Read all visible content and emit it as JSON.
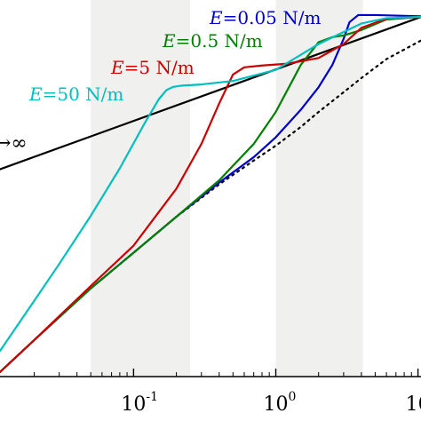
{
  "chart_data": {
    "type": "line",
    "x_scale": "log",
    "y_scale": "log",
    "xlim": [
      0.0115,
      10.5
    ],
    "ylim": [
      0.0095,
      1.48
    ],
    "grid": false,
    "legend": "none",
    "x_tick_values": [
      0.1,
      1,
      10
    ],
    "x_tick_labels": [
      {
        "base": "10",
        "exp": "-1"
      },
      {
        "base": "10",
        "exp": "0"
      },
      {
        "base": "10",
        "exp": ""
      }
    ],
    "shaded_bands": [
      {
        "x0": 0.05,
        "x1": 0.25,
        "color": "#f0f0ee"
      },
      {
        "x0": 1.0,
        "x1": 4.1,
        "color": "#f0f0ee"
      }
    ],
    "series": [
      {
        "label_prefix": "E",
        "label_value": "=50 N/m",
        "color": "#00bfbf",
        "x": [
          0.0115,
          0.015,
          0.02,
          0.03,
          0.05,
          0.08,
          0.12,
          0.15,
          0.17,
          0.19,
          0.22,
          0.3,
          0.5,
          1,
          2,
          4,
          6,
          10.5
        ],
        "y": [
          0.0134,
          0.0185,
          0.0262,
          0.043,
          0.082,
          0.155,
          0.285,
          0.39,
          0.442,
          0.462,
          0.47,
          0.477,
          0.5,
          0.58,
          0.82,
          1.08,
          1.16,
          1.18
        ]
      },
      {
        "label_prefix": "E",
        "label_value": "=5 N/m",
        "color": "#cc0000",
        "x": [
          0.0115,
          0.02,
          0.05,
          0.1,
          0.2,
          0.3,
          0.4,
          0.5,
          0.6,
          0.8,
          1.2,
          2,
          3,
          4,
          6,
          10.5
        ],
        "y": [
          0.0101,
          0.0155,
          0.032,
          0.055,
          0.118,
          0.215,
          0.37,
          0.545,
          0.6,
          0.615,
          0.63,
          0.68,
          0.82,
          1.02,
          1.15,
          1.18
        ]
      },
      {
        "label_prefix": "E",
        "label_value": "=0.5 N/m",
        "color": "#007f00",
        "x": [
          0.0115,
          0.02,
          0.05,
          0.1,
          0.2,
          0.4,
          0.7,
          1,
          1.5,
          2,
          2.5,
          3,
          4,
          6,
          10.5
        ],
        "y": [
          0.0101,
          0.0155,
          0.031,
          0.05,
          0.081,
          0.132,
          0.215,
          0.33,
          0.62,
          0.84,
          0.9,
          0.92,
          0.99,
          1.14,
          1.18
        ]
      },
      {
        "label_prefix": "E",
        "label_value": "=0.05 N/m",
        "color": "#0000cc",
        "x": [
          0.0115,
          0.02,
          0.05,
          0.1,
          0.2,
          0.4,
          0.7,
          1,
          1.5,
          2,
          2.5,
          3,
          3.3,
          3.8,
          5,
          10.5
        ],
        "y": [
          0.0101,
          0.0155,
          0.031,
          0.05,
          0.081,
          0.128,
          0.18,
          0.235,
          0.34,
          0.46,
          0.62,
          0.88,
          1.1,
          1.21,
          1.21,
          1.19
        ]
      },
      {
        "label_prefix": "",
        "label_value": "",
        "color": "#000000",
        "dash": "dotted",
        "x": [
          0.0115,
          0.02,
          0.05,
          0.1,
          0.2,
          0.4,
          0.7,
          1,
          1.5,
          2,
          3,
          4,
          6,
          10.5
        ],
        "y": [
          0.0101,
          0.0155,
          0.031,
          0.05,
          0.081,
          0.125,
          0.172,
          0.21,
          0.27,
          0.33,
          0.43,
          0.52,
          0.67,
          0.86
        ]
      },
      {
        "label_prefix": "",
        "label_value": "",
        "color": "#000000",
        "x": [
          0.0115,
          10.5
        ],
        "y": [
          0.153,
          1.18
        ]
      }
    ],
    "annotations": [
      {
        "text": "→∞"
      }
    ]
  }
}
